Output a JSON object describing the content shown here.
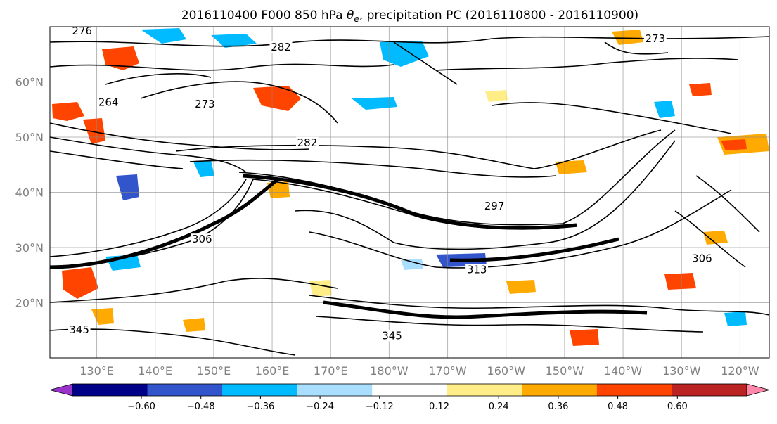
{
  "title": {
    "prefix": "2016110400 F000 850 hPa ",
    "symbol": "θ",
    "subscript": "e",
    "suffix": ", precipitation PC (2016110800 - 2016110900)"
  },
  "map": {
    "projection": "PlateCarree",
    "lon_range": [
      122,
      245
    ],
    "lat_range": [
      10,
      70
    ],
    "gridlines": true,
    "lat_ticks": [
      {
        "value": 20,
        "label": "20°N"
      },
      {
        "value": 30,
        "label": "30°N"
      },
      {
        "value": 40,
        "label": "40°N"
      },
      {
        "value": 50,
        "label": "50°N"
      },
      {
        "value": 60,
        "label": "60°N"
      }
    ],
    "lon_ticks": [
      {
        "value": 130,
        "label": "130°E"
      },
      {
        "value": 140,
        "label": "140°E"
      },
      {
        "value": 150,
        "label": "150°E"
      },
      {
        "value": 160,
        "label": "160°E"
      },
      {
        "value": 170,
        "label": "170°E"
      },
      {
        "value": 180,
        "label": "180°W"
      },
      {
        "value": 190,
        "label": "170°W"
      },
      {
        "value": 200,
        "label": "160°W"
      },
      {
        "value": 210,
        "label": "150°W"
      },
      {
        "value": 220,
        "label": "140°W"
      },
      {
        "value": 230,
        "label": "130°W"
      },
      {
        "value": 240,
        "label": "120°W"
      }
    ],
    "contour_labels": [
      {
        "text": "276",
        "lon": 127.5,
        "lat": 68.7
      },
      {
        "text": "282",
        "lon": 161.5,
        "lat": 65.8
      },
      {
        "text": "273",
        "lon": 225.5,
        "lat": 67.3
      },
      {
        "text": "264",
        "lon": 132.0,
        "lat": 55.8
      },
      {
        "text": "273",
        "lon": 148.5,
        "lat": 55.5
      },
      {
        "text": "282",
        "lon": 166.0,
        "lat": 48.5
      },
      {
        "text": "297",
        "lon": 198.0,
        "lat": 37.0
      },
      {
        "text": "306",
        "lon": 148.0,
        "lat": 31.0
      },
      {
        "text": "345",
        "lon": 127.0,
        "lat": 14.6
      },
      {
        "text": "345",
        "lon": 180.5,
        "lat": 13.5
      },
      {
        "text": "313",
        "lon": 195.0,
        "lat": 25.5
      },
      {
        "text": "306",
        "lon": 233.5,
        "lat": 27.5
      }
    ]
  },
  "colorbar": {
    "colors": [
      "#9933cc",
      "#000088",
      "#3355cc",
      "#00bbff",
      "#aadeff",
      "#ffffff",
      "#ffee88",
      "#ffaa00",
      "#ff4400",
      "#bb2222",
      "#ff88aa"
    ],
    "ticks": [
      "−0.60",
      "−0.48",
      "−0.36",
      "−0.24",
      "−0.12",
      "0.12",
      "0.24",
      "0.36",
      "0.48",
      "0.60"
    ]
  }
}
